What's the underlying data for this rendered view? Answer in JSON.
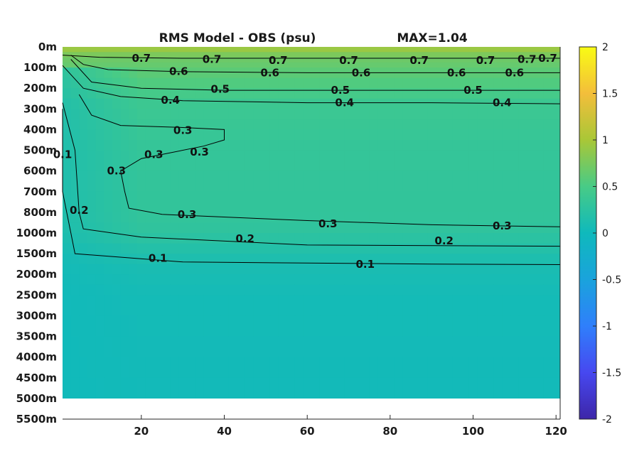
{
  "chart_data": {
    "type": "heatmap",
    "title": "RMS Model - OBS (psu)",
    "max_label": "MAX=1.04",
    "xlim": [
      1,
      121
    ],
    "x_ticks": [
      "20",
      "40",
      "60",
      "80",
      "100",
      "120"
    ],
    "x_tick_values": [
      20,
      40,
      60,
      80,
      100,
      120
    ],
    "y_ticks": [
      "0m",
      "100m",
      "200m",
      "300m",
      "400m",
      "500m",
      "600m",
      "700m",
      "800m",
      "1000m",
      "1500m",
      "2000m",
      "2500m",
      "3000m",
      "3500m",
      "4000m",
      "4500m",
      "5000m",
      "5500m"
    ],
    "y_tick_values": [
      0,
      100,
      200,
      300,
      400,
      500,
      600,
      700,
      800,
      1000,
      1500,
      2000,
      2500,
      3000,
      3500,
      4000,
      4500,
      5000,
      5500
    ],
    "data_bottom_depth": 5000,
    "colorbar": {
      "range": [
        -2,
        2
      ],
      "ticks": [
        "2",
        "1.5",
        "1",
        "0.5",
        "0",
        "-0.5",
        "-1",
        "-1.5",
        "-2"
      ],
      "tick_values": [
        2,
        1.5,
        1,
        0.5,
        0,
        -0.5,
        -1,
        -1.5,
        -2
      ],
      "colormap": "parula"
    },
    "contour_levels": [
      0.1,
      0.2,
      0.3,
      0.4,
      0.5,
      0.6,
      0.7
    ],
    "contours": [
      {
        "level": 0.7,
        "points": [
          [
            1,
            40
          ],
          [
            10,
            50
          ],
          [
            30,
            55
          ],
          [
            60,
            55
          ],
          [
            90,
            55
          ],
          [
            121,
            55
          ]
        ],
        "labels": [
          [
            20,
            55
          ],
          [
            37,
            60
          ],
          [
            53,
            65
          ],
          [
            70,
            65
          ],
          [
            87,
            65
          ],
          [
            103,
            65
          ],
          [
            113,
            60
          ],
          [
            118,
            55
          ]
        ]
      },
      {
        "level": 0.6,
        "points": [
          [
            3,
            40
          ],
          [
            6,
            85
          ],
          [
            12,
            110
          ],
          [
            30,
            120
          ],
          [
            60,
            125
          ],
          [
            90,
            125
          ],
          [
            121,
            125
          ]
        ],
        "labels": [
          [
            29,
            118
          ],
          [
            51,
            125
          ],
          [
            73,
            125
          ],
          [
            96,
            125
          ],
          [
            110,
            125
          ]
        ]
      },
      {
        "level": 0.5,
        "points": [
          [
            3,
            60
          ],
          [
            8,
            170
          ],
          [
            20,
            200
          ],
          [
            40,
            210
          ],
          [
            80,
            210
          ],
          [
            121,
            210
          ]
        ],
        "labels": [
          [
            39,
            204
          ],
          [
            68,
            210
          ],
          [
            100,
            210
          ]
        ]
      },
      {
        "level": 0.4,
        "points": [
          [
            1,
            90
          ],
          [
            6,
            200
          ],
          [
            15,
            240
          ],
          [
            30,
            260
          ],
          [
            60,
            270
          ],
          [
            90,
            270
          ],
          [
            121,
            275
          ]
        ],
        "labels": [
          [
            27,
            258
          ],
          [
            69,
            270
          ],
          [
            107,
            270
          ]
        ]
      },
      {
        "level": 0.3,
        "points": [
          [
            5,
            230
          ],
          [
            8,
            330
          ],
          [
            15,
            380
          ],
          [
            30,
            390
          ],
          [
            40,
            400
          ],
          [
            40,
            450
          ],
          [
            35,
            480
          ],
          [
            20,
            540
          ],
          [
            15,
            600
          ],
          [
            16,
            700
          ],
          [
            17,
            780
          ],
          [
            25,
            820
          ],
          [
            60,
            880
          ],
          [
            90,
            920
          ],
          [
            121,
            940
          ]
        ],
        "labels": [
          [
            30,
            403
          ],
          [
            23,
            520
          ],
          [
            34,
            508
          ],
          [
            14,
            600
          ],
          [
            31,
            820
          ],
          [
            65,
            912
          ],
          [
            107,
            930
          ]
        ]
      },
      {
        "level": 0.2,
        "points": [
          [
            1,
            270
          ],
          [
            4,
            500
          ],
          [
            5,
            800
          ],
          [
            6,
            960
          ],
          [
            20,
            1100
          ],
          [
            60,
            1290
          ],
          [
            121,
            1320
          ]
        ],
        "labels": [
          [
            5,
            790
          ],
          [
            45,
            1135
          ],
          [
            93,
            1188
          ]
        ]
      },
      {
        "level": 0.1,
        "points": [
          [
            1,
            300
          ],
          [
            1,
            700
          ],
          [
            3,
            1000
          ],
          [
            4,
            1500
          ],
          [
            30,
            1700
          ],
          [
            90,
            1750
          ],
          [
            121,
            1765
          ]
        ],
        "labels": [
          [
            1,
            520
          ],
          [
            24,
            1610
          ],
          [
            74,
            1760
          ]
        ]
      }
    ]
  }
}
